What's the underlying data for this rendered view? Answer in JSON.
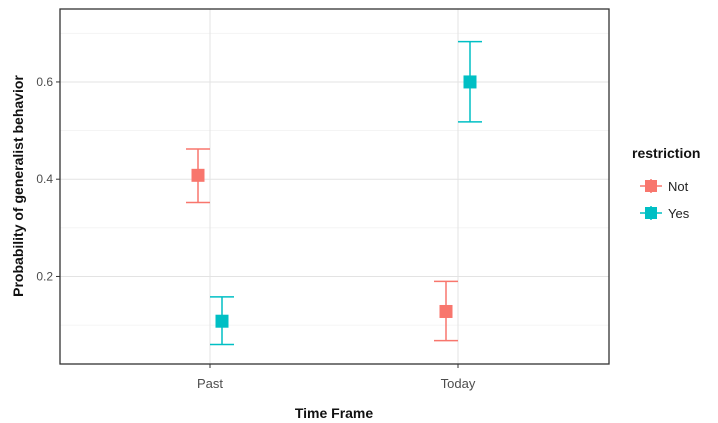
{
  "chart_data": {
    "type": "scatter",
    "title": "",
    "xlabel": "Time Frame",
    "ylabel": "Probability of generalist behavior",
    "categories": [
      "Past",
      "Today"
    ],
    "ylim": [
      0.02,
      0.75
    ],
    "yticks": [
      0.2,
      0.4,
      0.6
    ],
    "ytick_labels": [
      "0.2",
      "0.4",
      "0.6"
    ],
    "grid": true,
    "legend": {
      "title": "restriction",
      "placement": "right"
    },
    "series": [
      {
        "name": "Not",
        "color": "#F8766D",
        "values": [
          0.408,
          0.128
        ],
        "lower": [
          0.352,
          0.068
        ],
        "upper": [
          0.462,
          0.19
        ]
      },
      {
        "name": "Yes",
        "color": "#00BFC4",
        "values": [
          0.108,
          0.6
        ],
        "lower": [
          0.06,
          0.518
        ],
        "upper": [
          0.158,
          0.683
        ]
      }
    ]
  }
}
